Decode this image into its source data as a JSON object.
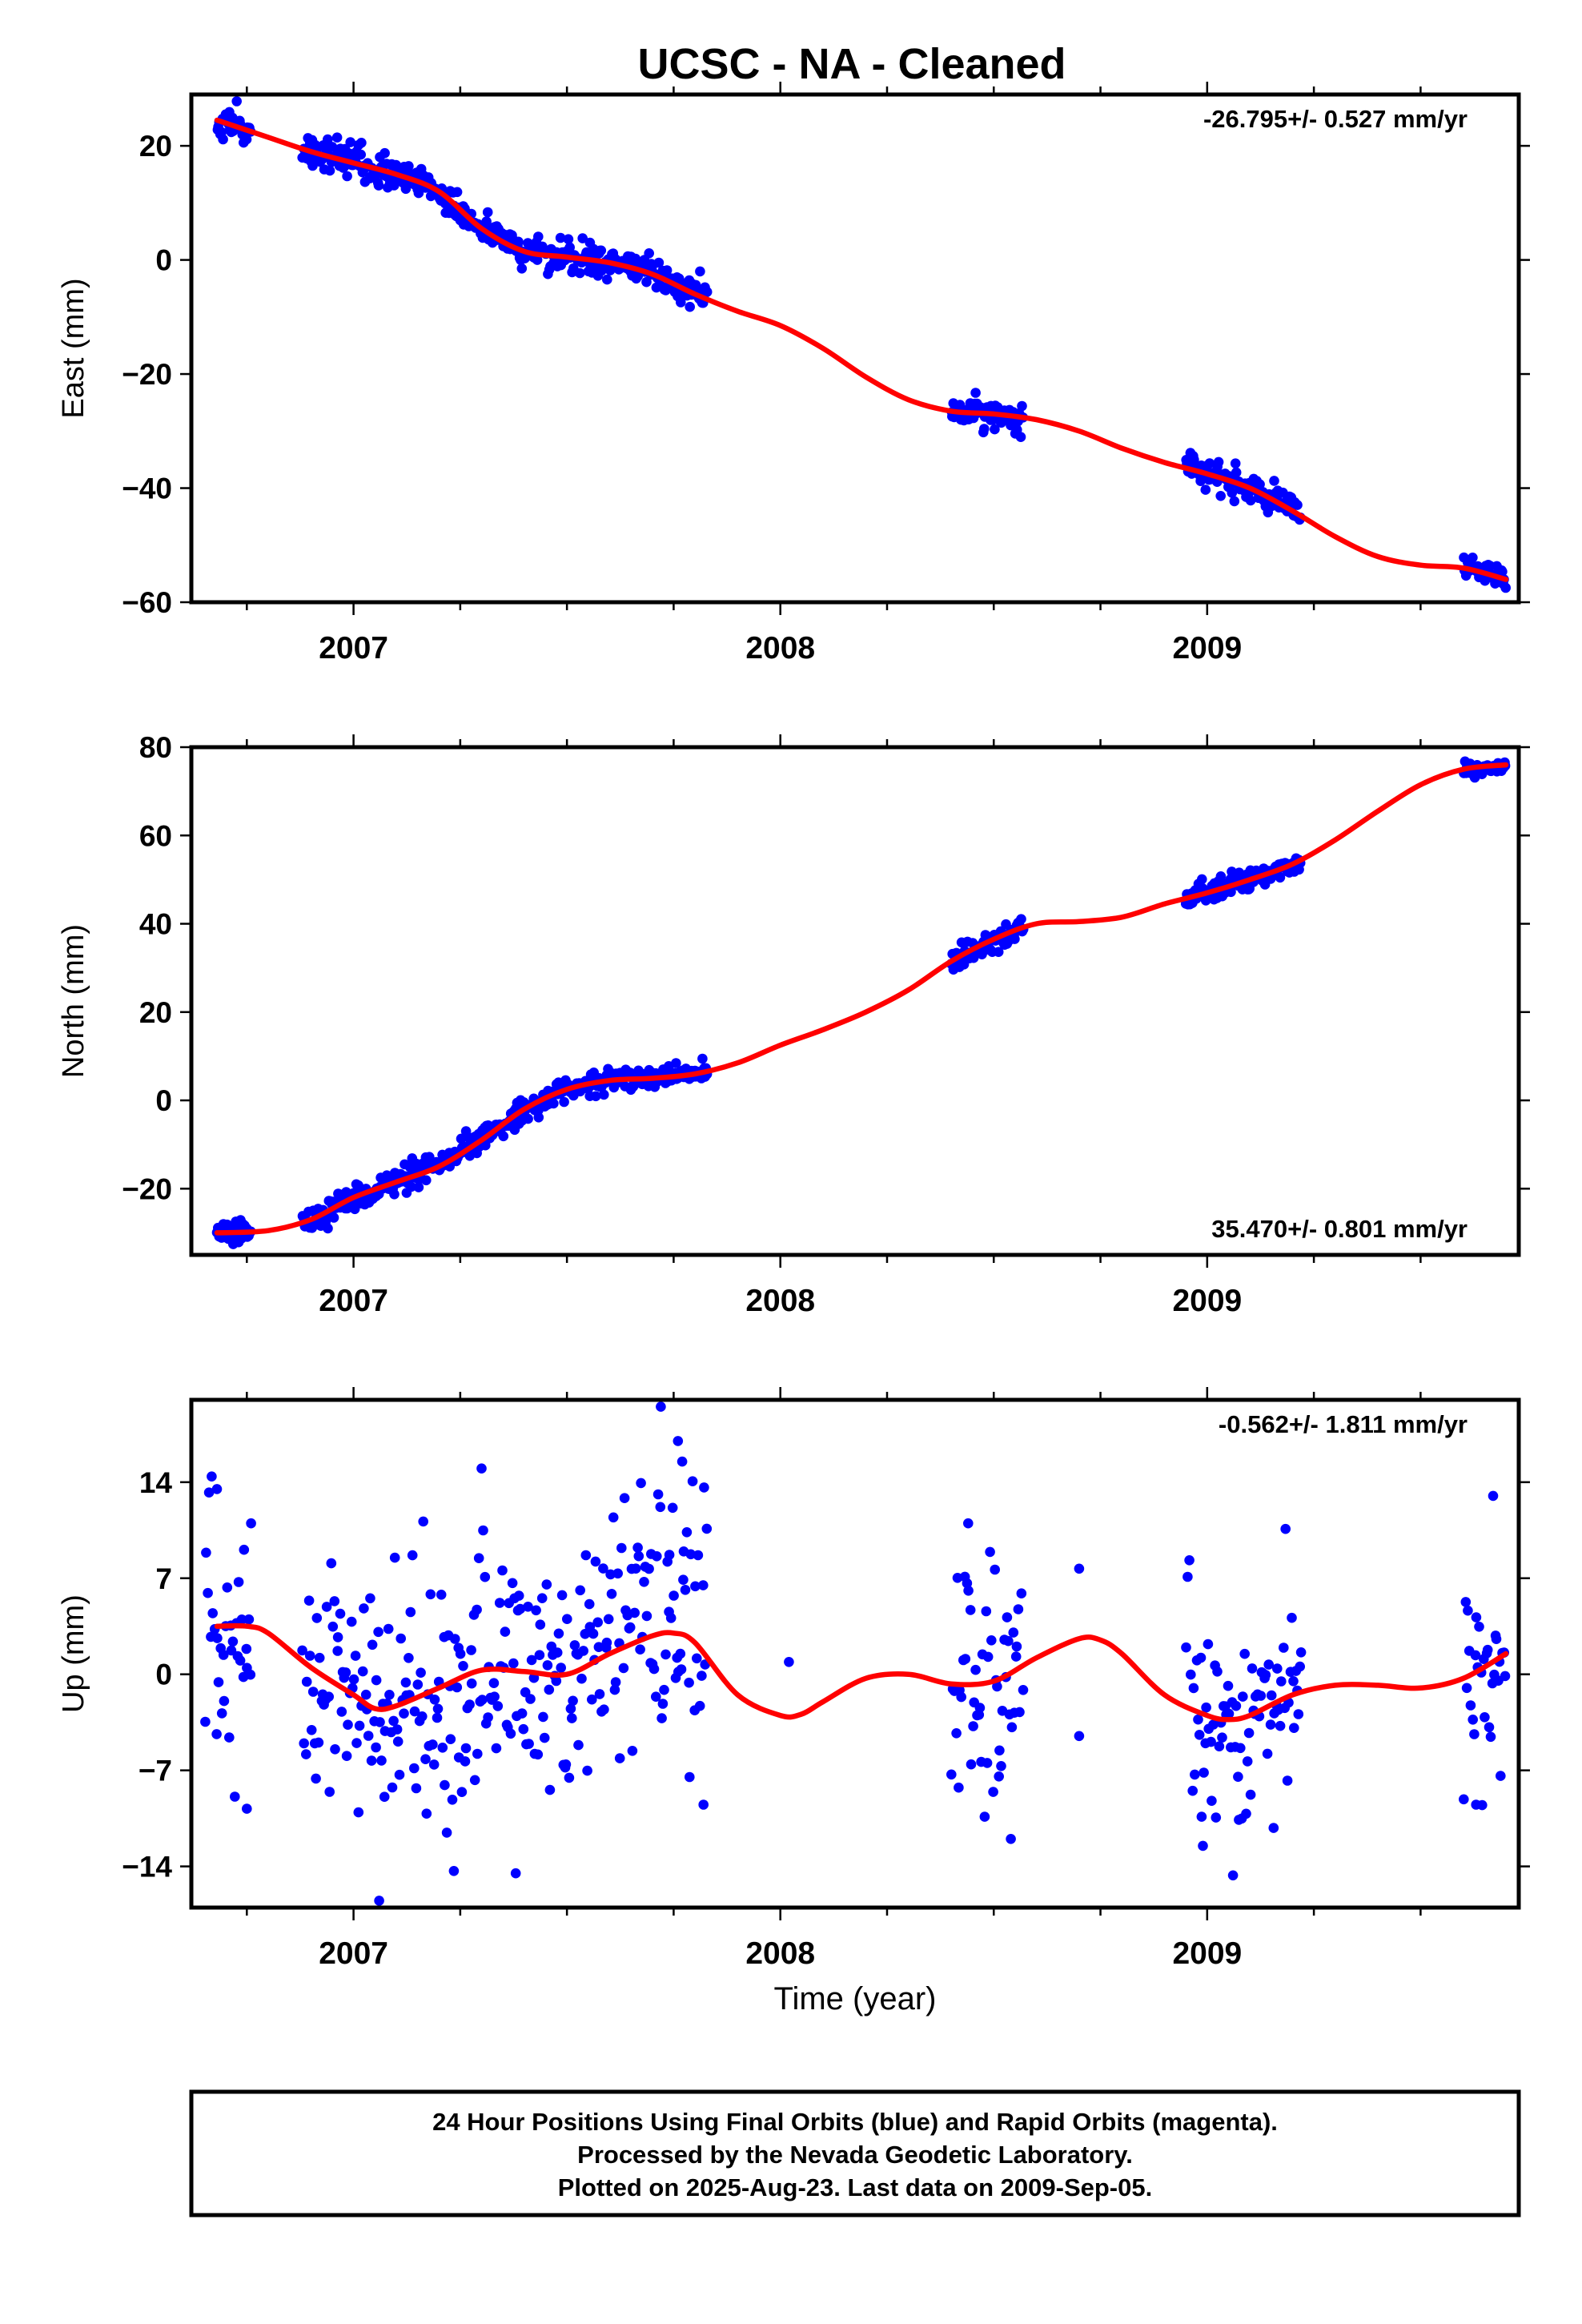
{
  "title": "UCSC  - NA - Cleaned",
  "colors": {
    "data_points": "#0000ff",
    "model_line": "#ff0000",
    "axes": "#000000"
  },
  "chart_data": [
    {
      "type": "scatter",
      "component": "east",
      "ylabel": "East (mm)",
      "xlabel": "",
      "xlim": [
        2006.62,
        2009.73
      ],
      "ylim": [
        -60,
        29
      ],
      "yticks": [
        20,
        0,
        -20,
        -40,
        -60
      ],
      "ytick_labels": [
        "20",
        "0",
        "−20",
        "−40",
        "−60"
      ],
      "xticks": [
        2007,
        2008,
        2009
      ],
      "xtick_labels": [
        "2007",
        "2008",
        "2009"
      ],
      "rate_label": "-26.795+/- 0.527 mm/yr",
      "rate_position": "top-right",
      "grid": false,
      "model": {
        "x": [
          2006.68,
          2006.8,
          2006.9,
          2007.0,
          2007.1,
          2007.2,
          2007.3,
          2007.4,
          2007.5,
          2007.6,
          2007.7,
          2007.8,
          2007.9,
          2008.0,
          2008.1,
          2008.2,
          2008.3,
          2008.4,
          2008.5,
          2008.6,
          2008.7,
          2008.8,
          2008.9,
          2009.0,
          2009.1,
          2009.2,
          2009.3,
          2009.4,
          2009.5,
          2009.6,
          2009.7
        ],
        "y": [
          24.5,
          21.5,
          19.0,
          17.0,
          15.0,
          12.0,
          5.5,
          1.5,
          0.5,
          -0.5,
          -2.5,
          -6.0,
          -9.0,
          -11.5,
          -15.5,
          -20.5,
          -24.5,
          -26.5,
          -27.0,
          -28.0,
          -30.0,
          -33.0,
          -35.5,
          -37.5,
          -40.0,
          -44.0,
          -48.5,
          -52.0,
          -53.5,
          -54.0,
          -56.0
        ]
      },
      "observations": [
        {
          "t_start": 2006.68,
          "t_end": 2006.76,
          "level": 24.5,
          "scatter": 1.5
        },
        {
          "t_start": 2006.88,
          "t_end": 2007.27,
          "level": 16.0,
          "scatter": 1.5
        },
        {
          "t_start": 2007.27,
          "t_end": 2007.5,
          "level": 2.5,
          "scatter": 1.3
        },
        {
          "t_start": 2007.5,
          "t_end": 2007.83,
          "level": -2.5,
          "scatter": 1.3
        },
        {
          "t_start": 2008.4,
          "t_end": 2008.57,
          "level": -26.0,
          "scatter": 1.4
        },
        {
          "t_start": 2008.95,
          "t_end": 2009.22,
          "level": -38.5,
          "scatter": 1.2
        },
        {
          "t_start": 2009.6,
          "t_end": 2009.7,
          "level": -56.0,
          "scatter": 1.0
        }
      ]
    },
    {
      "type": "scatter",
      "component": "north",
      "ylabel": "North (mm)",
      "xlabel": "",
      "xlim": [
        2006.62,
        2009.73
      ],
      "ylim": [
        -35,
        80
      ],
      "yticks": [
        80,
        60,
        40,
        20,
        0,
        -20
      ],
      "ytick_labels": [
        "80",
        "60",
        "40",
        "20",
        "0",
        "−20"
      ],
      "xticks": [
        2007,
        2008,
        2009
      ],
      "xtick_labels": [
        "2007",
        "2008",
        "2009"
      ],
      "rate_label": "35.470+/- 0.801 mm/yr",
      "rate_position": "bottom-right",
      "grid": false,
      "model": {
        "x": [
          2006.68,
          2006.8,
          2006.9,
          2007.0,
          2007.1,
          2007.2,
          2007.3,
          2007.4,
          2007.5,
          2007.6,
          2007.7,
          2007.8,
          2007.9,
          2008.0,
          2008.1,
          2008.2,
          2008.3,
          2008.4,
          2008.5,
          2008.6,
          2008.7,
          2008.8,
          2008.9,
          2009.0,
          2009.1,
          2009.2,
          2009.3,
          2009.4,
          2009.5,
          2009.6,
          2009.7
        ],
        "y": [
          -30.0,
          -29.5,
          -27.0,
          -22.0,
          -18.5,
          -15.0,
          -9.0,
          -2.0,
          2.5,
          4.5,
          5.0,
          6.0,
          8.5,
          12.5,
          16.0,
          20.0,
          25.0,
          31.5,
          36.5,
          40.0,
          40.5,
          41.5,
          44.5,
          47.0,
          50.0,
          53.5,
          59.0,
          65.5,
          71.5,
          75.0,
          76.0
        ]
      },
      "observations": [
        {
          "t_start": 2006.68,
          "t_end": 2006.76,
          "level": -30.0,
          "scatter": 1.2
        },
        {
          "t_start": 2006.88,
          "t_end": 2007.27,
          "level": -21.0,
          "scatter": 1.5
        },
        {
          "t_start": 2007.27,
          "t_end": 2007.5,
          "level": -4.5,
          "scatter": 1.3
        },
        {
          "t_start": 2007.5,
          "t_end": 2007.83,
          "level": 4.5,
          "scatter": 1.2
        },
        {
          "t_start": 2008.4,
          "t_end": 2008.57,
          "level": 36.5,
          "scatter": 1.4
        },
        {
          "t_start": 2008.95,
          "t_end": 2009.22,
          "level": 49.0,
          "scatter": 1.3
        },
        {
          "t_start": 2009.6,
          "t_end": 2009.7,
          "level": 76.0,
          "scatter": 1.0
        }
      ]
    },
    {
      "type": "scatter",
      "component": "up",
      "ylabel": "Up (mm)",
      "xlabel": "Time (year)",
      "xlim": [
        2006.62,
        2009.73
      ],
      "ylim": [
        -17,
        20
      ],
      "yticks": [
        14,
        7,
        0,
        -7,
        -14
      ],
      "ytick_labels": [
        "14",
        "7",
        "0",
        "−7",
        "−14"
      ],
      "xticks": [
        2007,
        2008,
        2009
      ],
      "xtick_labels": [
        "2007",
        "2008",
        "2009"
      ],
      "rate_label": "-0.562+/- 1.811 mm/yr",
      "rate_position": "top-right",
      "grid": false,
      "model": {
        "x": [
          2006.68,
          2006.75,
          2006.8,
          2006.9,
          2007.0,
          2007.05,
          2007.1,
          2007.2,
          2007.3,
          2007.4,
          2007.5,
          2007.6,
          2007.7,
          2007.75,
          2007.8,
          2007.9,
          2008.0,
          2008.05,
          2008.1,
          2008.2,
          2008.3,
          2008.4,
          2008.5,
          2008.6,
          2008.7,
          2008.75,
          2008.8,
          2008.9,
          2009.0,
          2009.05,
          2009.1,
          2009.2,
          2009.3,
          2009.4,
          2009.5,
          2009.6,
          2009.7
        ],
        "y": [
          3.5,
          3.5,
          3.0,
          0.5,
          -1.5,
          -2.5,
          -2.3,
          -1.0,
          0.3,
          0.2,
          0.0,
          1.5,
          2.8,
          3.0,
          2.3,
          -1.5,
          -3.0,
          -2.9,
          -2.0,
          -0.3,
          0.0,
          -0.7,
          -0.5,
          1.2,
          2.6,
          2.5,
          1.5,
          -1.5,
          -3.0,
          -3.3,
          -3.0,
          -1.5,
          -0.8,
          -0.8,
          -1.0,
          -0.3,
          1.5
        ]
      },
      "observations": [
        {
          "t_start": 2006.65,
          "t_end": 2006.76,
          "level": 3.0,
          "scatter": 4.5
        },
        {
          "t_start": 2006.88,
          "t_end": 2007.27,
          "level": -3.0,
          "scatter": 4.5
        },
        {
          "t_start": 2007.27,
          "t_end": 2007.6,
          "level": 0.0,
          "scatter": 4.5
        },
        {
          "t_start": 2007.6,
          "t_end": 2007.83,
          "level": 5.0,
          "scatter": 5.0
        },
        {
          "t_start": 2008.4,
          "t_end": 2008.57,
          "level": 0.0,
          "scatter": 4.0
        },
        {
          "t_start": 2008.95,
          "t_end": 2009.22,
          "level": -3.5,
          "scatter": 4.0
        },
        {
          "t_start": 2009.6,
          "t_end": 2009.7,
          "level": -1.5,
          "scatter": 4.5
        }
      ],
      "outliers": [
        {
          "x": 2007.72,
          "y": 19.5
        },
        {
          "x": 2007.76,
          "y": 17.0
        },
        {
          "x": 2007.77,
          "y": 15.5
        },
        {
          "x": 2007.3,
          "y": 15.0
        },
        {
          "x": 2006.68,
          "y": 13.5
        },
        {
          "x": 2009.67,
          "y": 13.0
        },
        {
          "x": 2006.76,
          "y": 11.0
        },
        {
          "x": 2008.44,
          "y": 11.0
        },
        {
          "x": 2007.06,
          "y": -16.5
        },
        {
          "x": 2007.38,
          "y": -14.5
        },
        {
          "x": 2008.54,
          "y": -12.0
        },
        {
          "x": 2008.99,
          "y": -12.5
        },
        {
          "x": 2007.82,
          "y": -9.5
        },
        {
          "x": 2006.75,
          "y": -9.8
        },
        {
          "x": 2008.7,
          "y": 7.7
        },
        {
          "x": 2008.7,
          "y": -4.5
        },
        {
          "x": 2008.02,
          "y": 0.9
        },
        {
          "x": 2009.22,
          "y": 1.6
        },
        {
          "x": 2009.63,
          "y": -9.5
        }
      ]
    }
  ],
  "footer": {
    "line1": "24 Hour Positions Using Final Orbits (blue) and Rapid Orbits (magenta).",
    "line2": "Processed by the Nevada Geodetic Laboratory.",
    "line3": "Plotted on 2025-Aug-23. Last data on 2009-Sep-05."
  }
}
